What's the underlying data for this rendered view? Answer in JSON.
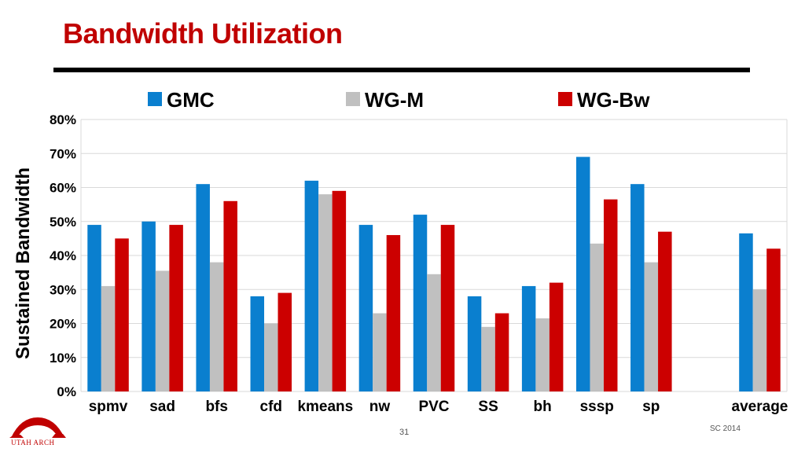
{
  "slide": {
    "title": "Bandwidth Utilization",
    "page_number": "31",
    "conference": "SC 2014",
    "logo_text": "UTAH ARCH"
  },
  "colors": {
    "title": "#c00000",
    "GMC": "#0a7fcf",
    "WG-M": "#c0c0c0",
    "WG-Bw": "#cc0000",
    "grid": "#d9d9d9"
  },
  "chart_data": {
    "type": "bar",
    "title": "",
    "xlabel": "",
    "ylabel": "Sustained Bandwidth",
    "ylim": [
      0,
      80
    ],
    "y_tick_step": 10,
    "y_tick_format": "percent",
    "grid": true,
    "legend_position": "top",
    "categories": [
      "spmv",
      "sad",
      "bfs",
      "cfd",
      "kmeans",
      "nw",
      "PVC",
      "SS",
      "bh",
      "sssp",
      "sp",
      "",
      "average"
    ],
    "series": [
      {
        "name": "GMC",
        "color": "#0a7fcf",
        "values": [
          49,
          50,
          61,
          28,
          62,
          49,
          52,
          28,
          31,
          69,
          61,
          null,
          46.5
        ]
      },
      {
        "name": "WG-M",
        "color": "#c0c0c0",
        "values": [
          31,
          35.5,
          38,
          20,
          58,
          23,
          34.5,
          19,
          21.5,
          43.5,
          38,
          null,
          30
        ]
      },
      {
        "name": "WG-Bw",
        "color": "#cc0000",
        "values": [
          45,
          49,
          56,
          29,
          59,
          46,
          49,
          23,
          32,
          56.5,
          47,
          null,
          42
        ]
      }
    ]
  }
}
